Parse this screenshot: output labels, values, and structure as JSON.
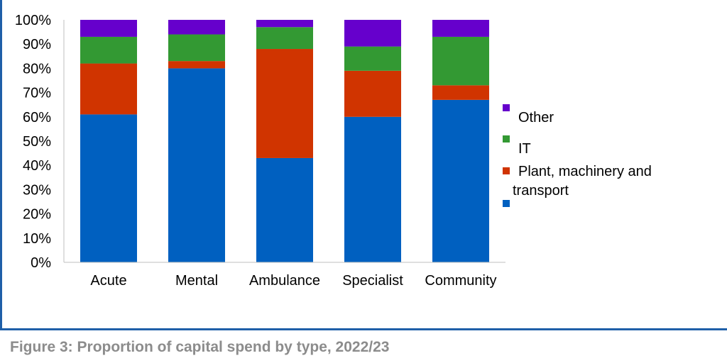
{
  "caption": "Figure 3: Proportion of capital spend by type, 2022/23",
  "chart_data": {
    "type": "bar",
    "stacked": true,
    "percent_stacked": true,
    "categories": [
      "Acute",
      "Mental",
      "Ambulance",
      "Specialist",
      "Community"
    ],
    "series": [
      {
        "key": "s1",
        "name": "",
        "color": "#0060c0",
        "values": [
          61,
          80,
          43,
          60,
          67
        ]
      },
      {
        "key": "s2",
        "name": "Plant, machinery and transport",
        "color": "#d03400",
        "values": [
          21,
          3,
          45,
          19,
          6
        ]
      },
      {
        "key": "s3",
        "name": "IT",
        "color": "#339933",
        "values": [
          11,
          11,
          9,
          10,
          20
        ]
      },
      {
        "key": "s4",
        "name": "Other",
        "color": "#6600cc",
        "values": [
          7,
          6,
          3,
          11,
          7
        ]
      }
    ],
    "y_ticks": [
      "0%",
      "10%",
      "20%",
      "30%",
      "40%",
      "50%",
      "60%",
      "70%",
      "80%",
      "90%",
      "100%"
    ],
    "ylim": [
      0,
      100
    ],
    "grid": false,
    "legend_position": "right"
  }
}
